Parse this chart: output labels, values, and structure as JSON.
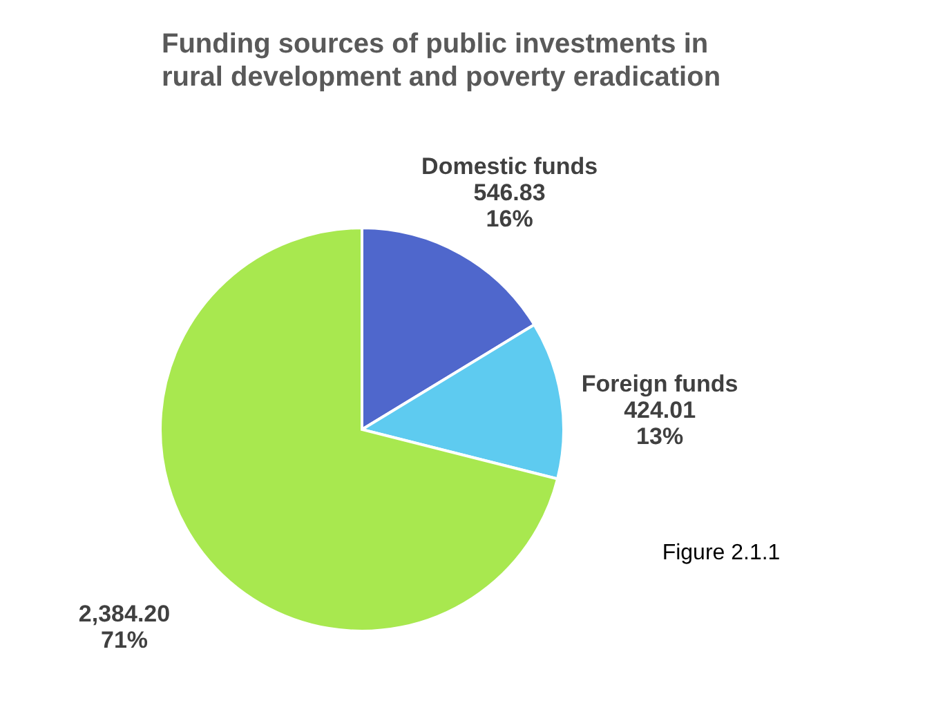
{
  "chart_data": {
    "type": "pie",
    "title": "Funding sources of public investments in rural development and poverty eradication",
    "categories": [
      "Domestic funds",
      "Foreign funds",
      null
    ],
    "values": [
      546.83,
      424.01,
      2384.2
    ],
    "colors": [
      "#4f67cc",
      "#5ecbf0",
      "#a8e84f"
    ],
    "value_labels": [
      "546.83\n16%",
      "424.01\n13%",
      "2,384.20\n71%"
    ],
    "legend": false,
    "annotations": [
      "Figure 2.1.1"
    ]
  }
}
